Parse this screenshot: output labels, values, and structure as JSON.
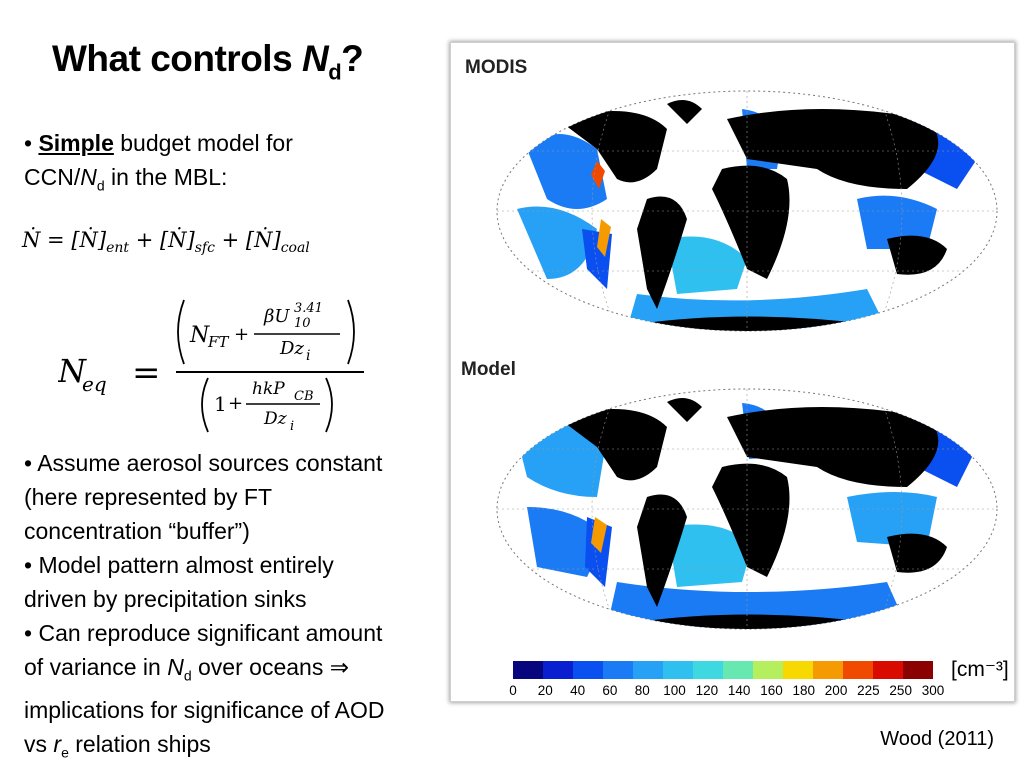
{
  "title": {
    "prefix": "What controls ",
    "n": "N",
    "sub": "d",
    "suffix": "?"
  },
  "bullet1": {
    "dot": "• ",
    "simple": "Simple",
    "rest1": " budget model for",
    "line2a": "CCN/",
    "n": "N",
    "sub": "d",
    "line2b": " in the MBL:"
  },
  "eq1": {
    "lhs": "Ṅ = ",
    "t1": "[Ṅ]",
    "s1": "ent",
    "plus": " + ",
    "t2": "[Ṅ]",
    "s2": "sfc",
    "t3": "[Ṅ]",
    "s3": "coal"
  },
  "eq2": {
    "lhs": "N",
    "lhs_sub": "eq",
    "equals": "=",
    "num_a": "N",
    "num_a_sub": "FT",
    "plus1": "+",
    "frac1_num": "βU",
    "frac1_sup": "3.41",
    "frac1_sub": "10",
    "frac1_den": "Dz",
    "frac1_den_sub": "i",
    "den_a": "1",
    "plus2": "+",
    "frac2_num": "hkP",
    "frac2_num_sub": "CB",
    "frac2_den": "Dz",
    "frac2_den_sub": "i"
  },
  "bullets": [
    {
      "dot": "• ",
      "lines": [
        "Assume aerosol sources constant",
        "(here represented by FT",
        "concentration “buffer”)"
      ]
    },
    {
      "dot": "• ",
      "lines": [
        "Model pattern almost entirely",
        "driven by precipitation sinks"
      ]
    }
  ],
  "bullet_last": {
    "dot": "• ",
    "line1": "Can reproduce significant amount",
    "line2a": "of variance in ",
    "n": "N",
    "sub": "d",
    "line2b": " over oceans ",
    "arrow": "⇒",
    "line3": "implications for significance of AOD",
    "line4a": "vs ",
    "r": "r",
    "rsub": "e",
    "line4b": " relation ships"
  },
  "figure": {
    "panel_top": "MODIS",
    "panel_bottom": "Model",
    "unit": "[cm⁻³]",
    "colorbar_ticks": [
      "0",
      "20",
      "40",
      "60",
      "80",
      "100",
      "120",
      "140",
      "160",
      "180",
      "200",
      "225",
      "250",
      "300"
    ],
    "colorbar_colors": [
      "#08067d",
      "#0a1fcf",
      "#0a4ff0",
      "#1b7bf5",
      "#27a1f5",
      "#2fc0f0",
      "#3ed8e0",
      "#66e8b0",
      "#b5ef5e",
      "#f7d800",
      "#f59a00",
      "#ef4a00",
      "#d90a00",
      "#8b0000"
    ]
  },
  "credit": "Wood (2011)"
}
